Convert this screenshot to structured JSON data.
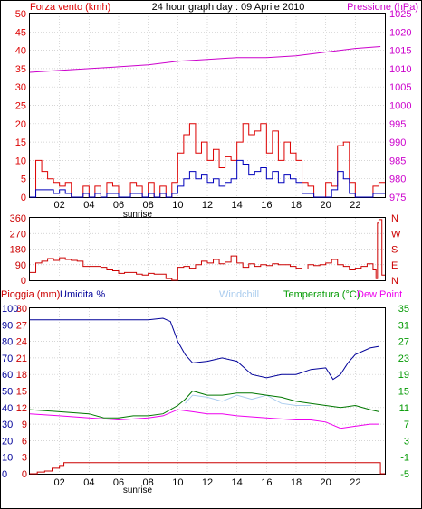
{
  "header": {
    "wind_label": "Forza vento (kmh)",
    "title": "24 hour graph day : 09 Aprile 2010",
    "pressure_label": "Pressione (hPa)"
  },
  "labels": {
    "sunrise": "sunrise",
    "rain_label": "Pioggia (mm)",
    "humidity_label": "Umidita %",
    "windchill_label": "Windchill",
    "temperature_label": "Temperatura (°C)",
    "dewpoint_label": "Dew Point"
  },
  "colors": {
    "wind": "#dd0000",
    "avg_wind": "#0000bb",
    "pressure": "#cc00cc",
    "direction": "#cc0000",
    "humidity": "#000099",
    "temperature": "#007700",
    "windchill": "#aaccee",
    "dewpoint": "#ee00ee",
    "rain": "#cc0000",
    "temp_axis": "#009900",
    "rain_axis": "#cc0000",
    "humidity_axis": "#000099"
  },
  "x_ticks": [
    "02",
    "04",
    "06",
    "08",
    "10",
    "12",
    "14",
    "16",
    "18",
    "20",
    "22"
  ],
  "chart_data": [
    {
      "type": "line",
      "name": "wind_pressure",
      "x_range_hours": [
        0,
        24
      ],
      "ylim_left": [
        0,
        50
      ],
      "y_ticks_left": [
        "0",
        "5",
        "10",
        "15",
        "20",
        "25",
        "30",
        "35",
        "40",
        "45",
        "50"
      ],
      "ylim_right": [
        975,
        1025
      ],
      "y_ticks_right": [
        "975",
        "980",
        "985",
        "990",
        "995",
        "1000",
        "1005",
        "1010",
        "1015",
        "1020",
        "1025"
      ],
      "series": [
        {
          "name": "Forza vento (kmh)",
          "x": [
            0.0,
            0.4,
            0.8,
            1.2,
            1.6,
            2.0,
            2.4,
            2.8,
            3.2,
            3.6,
            4.0,
            4.4,
            4.8,
            5.2,
            5.6,
            6.0,
            6.4,
            6.8,
            7.2,
            7.6,
            8.0,
            8.4,
            8.8,
            9.2,
            9.6,
            10.0,
            10.4,
            10.8,
            11.2,
            11.6,
            12.0,
            12.4,
            12.8,
            13.2,
            13.6,
            14.0,
            14.4,
            14.8,
            15.2,
            15.6,
            16.0,
            16.4,
            16.8,
            17.2,
            17.6,
            18.0,
            18.4,
            18.8,
            19.2,
            19.6,
            20.0,
            20.4,
            20.8,
            21.2,
            21.6,
            22.0,
            22.4,
            22.8,
            23.2,
            23.6
          ],
          "values": [
            0,
            10,
            7,
            5,
            4,
            3,
            4,
            0,
            0,
            3,
            0,
            3,
            0,
            4,
            3,
            0,
            0,
            4,
            3,
            0,
            4,
            0,
            3,
            0,
            4,
            12,
            17,
            20,
            12,
            15,
            10,
            13,
            8,
            11,
            10,
            15,
            20,
            17,
            18,
            20,
            12,
            18,
            10,
            15,
            12,
            10,
            4,
            3,
            0,
            0,
            4,
            3,
            14,
            15,
            4,
            0,
            0,
            0,
            3,
            4
          ]
        },
        {
          "name": "avg",
          "x": [
            0.0,
            0.4,
            0.8,
            1.2,
            1.6,
            2.0,
            2.4,
            2.8,
            3.2,
            3.6,
            4.0,
            4.4,
            4.8,
            5.2,
            5.6,
            6.0,
            6.4,
            6.8,
            7.2,
            7.6,
            8.0,
            8.4,
            8.8,
            9.2,
            9.6,
            10.0,
            10.4,
            10.8,
            11.2,
            11.6,
            12.0,
            12.4,
            12.8,
            13.2,
            13.6,
            14.0,
            14.4,
            14.8,
            15.2,
            15.6,
            16.0,
            16.4,
            16.8,
            17.2,
            17.6,
            18.0,
            18.4,
            18.8,
            19.2,
            19.6,
            20.0,
            20.4,
            20.8,
            21.2,
            21.6,
            22.0,
            22.4,
            22.8,
            23.2,
            23.6
          ],
          "values": [
            0,
            2,
            2,
            2,
            1,
            2,
            1,
            0,
            0,
            1,
            0,
            1,
            0,
            1,
            1,
            0,
            0,
            1,
            1,
            0,
            1,
            0,
            1,
            0,
            1,
            3,
            5,
            7,
            5,
            6,
            4,
            5,
            3,
            4,
            5,
            10,
            9,
            6,
            7,
            8,
            5,
            7,
            4,
            6,
            5,
            4,
            1,
            1,
            0,
            0,
            0,
            2,
            7,
            5,
            1,
            0,
            0,
            0,
            1,
            1
          ]
        },
        {
          "name": "Pressione (hPa)",
          "x": [
            0,
            2,
            4,
            6,
            8,
            10,
            12,
            14,
            16,
            18,
            20,
            22,
            23.7
          ],
          "values": [
            1009,
            1009.5,
            1010,
            1010.5,
            1011,
            1012,
            1012.5,
            1013,
            1013,
            1013.5,
            1014.5,
            1015.5,
            1016
          ]
        }
      ]
    },
    {
      "type": "line",
      "name": "wind_direction",
      "x_range_hours": [
        0,
        24
      ],
      "ylim": [
        0,
        360
      ],
      "y_ticks_left": [
        "0",
        "90",
        "180",
        "270",
        "360"
      ],
      "y_ticks_right": [
        "N",
        "E",
        "S",
        "W",
        "N"
      ],
      "series": [
        {
          "name": "direction",
          "x": [
            0.0,
            0.4,
            0.8,
            1.2,
            1.6,
            2.0,
            2.4,
            2.8,
            3.2,
            3.6,
            4.0,
            4.4,
            4.8,
            5.2,
            5.6,
            6.0,
            6.4,
            6.8,
            7.2,
            7.6,
            8.0,
            8.4,
            8.8,
            9.2,
            9.6,
            10.0,
            10.4,
            10.8,
            11.2,
            11.6,
            12.0,
            12.4,
            12.8,
            13.2,
            13.6,
            14.0,
            14.4,
            14.8,
            15.2,
            15.6,
            16.0,
            16.4,
            16.8,
            17.2,
            17.6,
            18.0,
            18.4,
            18.8,
            19.2,
            19.6,
            20.0,
            20.4,
            20.8,
            21.2,
            21.6,
            22.0,
            22.4,
            22.8,
            23.2,
            23.4,
            23.5,
            23.6,
            23.8
          ],
          "values": [
            45,
            100,
            110,
            125,
            115,
            130,
            120,
            115,
            110,
            80,
            80,
            80,
            75,
            60,
            55,
            40,
            45,
            45,
            35,
            30,
            40,
            35,
            35,
            10,
            0,
            75,
            80,
            70,
            90,
            110,
            100,
            120,
            95,
            105,
            140,
            100,
            75,
            95,
            80,
            90,
            85,
            95,
            90,
            90,
            80,
            70,
            65,
            90,
            85,
            90,
            100,
            120,
            90,
            80,
            60,
            70,
            80,
            95,
            60,
            10,
            330,
            350,
            30
          ]
        }
      ]
    },
    {
      "type": "line",
      "name": "rain_humidity_temperature",
      "x_range_hours": [
        0,
        24
      ],
      "ylim_left_rain": [
        0,
        30
      ],
      "y_ticks_rain": [
        "0",
        "3",
        "6",
        "9",
        "12",
        "15",
        "18",
        "21",
        "24",
        "27",
        "30"
      ],
      "ylim_left_humidity": [
        0,
        100
      ],
      "y_ticks_humidity": [
        "0",
        "10",
        "20",
        "30",
        "40",
        "50",
        "60",
        "70",
        "80",
        "90",
        "100"
      ],
      "ylim_right_temp": [
        -5,
        35
      ],
      "y_ticks_temp": [
        "-5",
        "-1",
        "3",
        "7",
        "11",
        "15",
        "19",
        "23",
        "27",
        "31",
        "35"
      ],
      "series": [
        {
          "name": "Umidita %",
          "x": [
            0,
            2,
            4,
            6,
            8,
            9,
            9.5,
            10,
            10.5,
            11,
            12,
            13,
            14,
            15,
            16,
            17,
            18,
            19,
            20,
            20.5,
            21,
            21.5,
            22,
            23,
            23.6
          ],
          "values": [
            93,
            93,
            93,
            93,
            93,
            94,
            92,
            80,
            72,
            67,
            68,
            70,
            68,
            60,
            58,
            60,
            60,
            63,
            64,
            57,
            60,
            67,
            72,
            76,
            77
          ]
        },
        {
          "name": "Temperatura (°C)",
          "x": [
            0,
            2,
            4,
            5,
            6,
            7,
            8,
            9,
            9.5,
            10,
            10.5,
            11,
            12,
            13,
            14,
            15,
            16,
            17,
            18,
            19,
            20,
            21,
            22,
            23,
            23.6
          ],
          "values": [
            10.5,
            10,
            9.5,
            8.5,
            8.5,
            9,
            9,
            9.5,
            10.5,
            11.5,
            13,
            15,
            14,
            14,
            14.5,
            14.5,
            14,
            13.5,
            12.5,
            12,
            11.5,
            11,
            11.5,
            10.5,
            10
          ]
        },
        {
          "name": "Windchill",
          "x": [
            10.5,
            11,
            12,
            13,
            14,
            15,
            16,
            17,
            18,
            19
          ],
          "values": [
            12,
            14,
            13.5,
            12.5,
            14,
            13,
            14,
            12,
            11.5,
            11.5
          ]
        },
        {
          "name": "Dew Point",
          "x": [
            0,
            2,
            4,
            6,
            8,
            9,
            10,
            11,
            12,
            13,
            14,
            16,
            18,
            19,
            20,
            21,
            22,
            23,
            23.6
          ],
          "values": [
            9.5,
            9,
            8.5,
            8,
            8.5,
            9,
            10.5,
            10,
            9.5,
            9.5,
            9,
            8.5,
            8,
            8,
            7.5,
            6,
            6.5,
            7,
            7
          ]
        },
        {
          "name": "Pioggia (mm)",
          "x": [
            0,
            0.5,
            1,
            1.5,
            2,
            2.3,
            4,
            8,
            12,
            16,
            20,
            23.5,
            23.7
          ],
          "values": [
            0,
            0.3,
            0.5,
            1,
            1.5,
            2,
            2,
            2,
            2,
            2,
            2,
            2,
            0
          ]
        }
      ]
    }
  ]
}
